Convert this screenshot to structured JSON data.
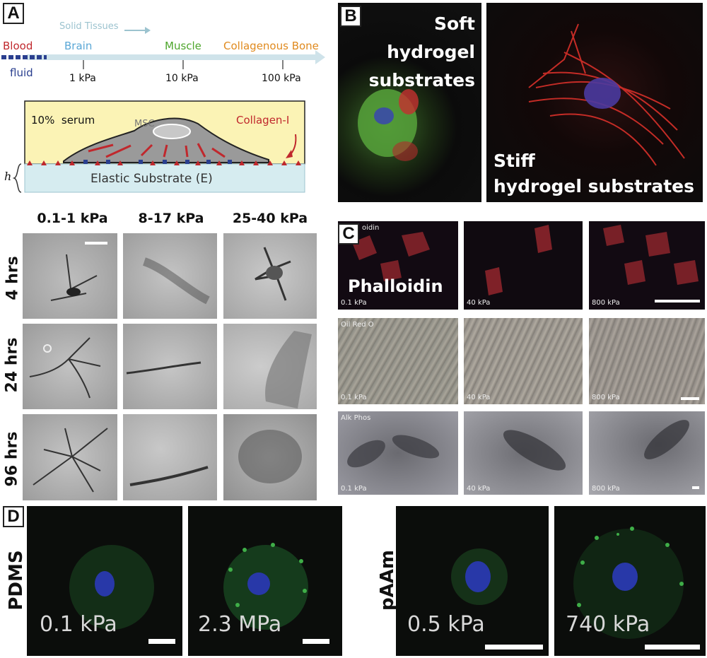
{
  "panel_a": {
    "tag": "A",
    "solid_tissues": "Solid Tissues",
    "blood": "Blood",
    "fluid": "fluid",
    "tissues": [
      "Brain",
      "Muscle",
      "Collagenous Bone"
    ],
    "ticks": [
      "1 kPa",
      "10 kPa",
      "100 kPa"
    ],
    "serum": "10%  serum",
    "msc": "MSC",
    "collagen": "Collagen-I",
    "h": "h",
    "substrate": "Elastic Substrate (E)",
    "columns": [
      "0.1-1 kPa",
      "8-17 kPa",
      "25-40 kPa"
    ],
    "rows": [
      "4 hrs",
      "24 hrs",
      "96 hrs"
    ]
  },
  "panel_b": {
    "tag": "B",
    "soft": [
      "Soft",
      "hydrogel",
      "substrates"
    ],
    "stiff": [
      "Stiff",
      "hydrogel substrates"
    ]
  },
  "panel_c": {
    "tag": "C",
    "row_labels": [
      "oidin",
      "Oil Red O",
      "Alk Phos"
    ],
    "phalloidin": "Phalloidin",
    "stiffness": [
      "0.1 kPa",
      "40 kPa",
      "800 kPa"
    ]
  },
  "panel_d": {
    "tag": "D",
    "pdms": "PDMS",
    "paam": "pAAm",
    "values": [
      "0.1 kPa",
      "2.3 MPa",
      "0.5 kPa",
      "740 kPa"
    ]
  },
  "colors": {
    "blood": "#c0282d",
    "fluid": "#2a3f8f",
    "brain": "#5aa7d6",
    "muscle": "#4ea62c",
    "bone": "#e08a1e",
    "collagen": "#c0282d"
  }
}
